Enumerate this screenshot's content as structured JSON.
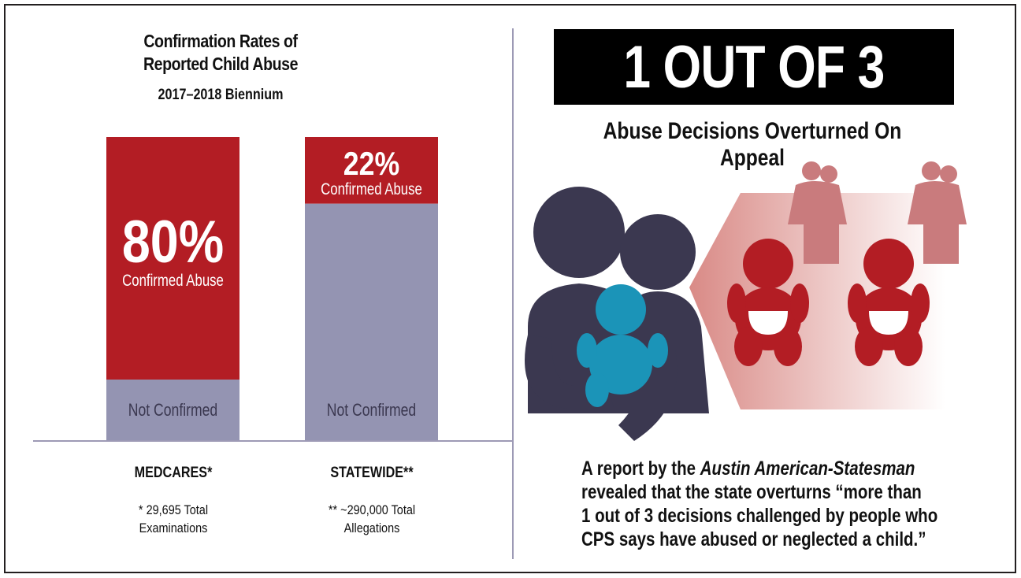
{
  "left": {
    "title_line1": "Confirmation Rates of",
    "title_line2": "Reported Child Abuse",
    "subtitle": "2017–2018 Biennium",
    "notes": [
      "* 29,695 Total",
      "Examinations",
      "** ~290,000 Total",
      "Allegations"
    ]
  },
  "chart_data": {
    "type": "bar",
    "stacked": true,
    "title": "Confirmation Rates of Reported Child Abuse",
    "subtitle": "2017–2018 Biennium",
    "categories": [
      "MEDCARES*",
      "STATEWIDE**"
    ],
    "series": [
      {
        "name": "Confirmed Abuse",
        "values": [
          80,
          22
        ],
        "labels": [
          "80%",
          "22%"
        ],
        "color": "#b31d24"
      },
      {
        "name": "Not Confirmed",
        "values": [
          20,
          78
        ],
        "color": "#9494b2"
      }
    ],
    "ylim": [
      0,
      100
    ],
    "grid": false,
    "xlabel": "",
    "ylabel": ""
  },
  "right": {
    "banner": "1 OUT OF 3",
    "heading": "Abuse Decisions Overturned On Appeal",
    "body_line1_pre": "A report by the ",
    "body_line1_italic": "Austin American-Statesman",
    "body_line2": "revealed that the state overturns “more than",
    "body_line3": "1 out of 3 decisions challenged by people who",
    "body_line4": "CPS says have abused or neglected a child.”"
  },
  "colors": {
    "red": "#b31d24",
    "gray": "#9494b2",
    "navy": "#3b3850",
    "teal": "#1b94b8",
    "pink": "#c97b7d"
  }
}
